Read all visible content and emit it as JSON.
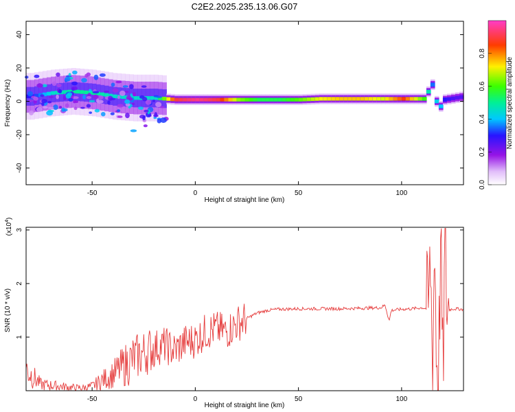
{
  "title": "C2E2.2025.235.13.06.G07",
  "chart_data": [
    {
      "type": "heatmap",
      "title": "C2E2.2025.235.13.06.G07",
      "xlabel": "Height of straight line (km)",
      "ylabel": "Frequency (Hz)",
      "xlim": [
        -82,
        130
      ],
      "ylim": [
        -50,
        48
      ],
      "x_ticks": [
        "-50",
        "0",
        "50",
        "100"
      ],
      "y_ticks": [
        "-40",
        "-20",
        "0",
        "20",
        "40"
      ],
      "colorbar": {
        "label": "Normalized spectral amplitude",
        "range": [
          0,
          1
        ],
        "ticks": [
          "0.0",
          "0.2",
          "0.4",
          "0.6",
          "0.8"
        ],
        "colormap": "rainbow (white→purple→blue→cyan→green→yellow→red→pink)"
      },
      "ridge": {
        "description": "frequency ridge of the signal vs height",
        "x": [
          -80,
          -70,
          -60,
          -50,
          -40,
          -30,
          -20,
          -10,
          0,
          10,
          20,
          30,
          40,
          50,
          60,
          70,
          80,
          90,
          100,
          110,
          114,
          117,
          120,
          125,
          130
        ],
        "frequency_hz": [
          3,
          5,
          6,
          5,
          3,
          2,
          2,
          1,
          1,
          1,
          1,
          1,
          1,
          1,
          1.5,
          1.5,
          1.5,
          1.5,
          1.5,
          1.5,
          10,
          -5,
          1,
          2,
          3
        ],
        "peak_amplitude": [
          0.3,
          0.45,
          0.5,
          0.5,
          0.45,
          0.45,
          0.45,
          0.9,
          0.95,
          0.9,
          0.65,
          0.55,
          0.55,
          0.62,
          0.72,
          0.75,
          0.75,
          0.7,
          0.85,
          0.6,
          0.35,
          0.45,
          0.3,
          0.25,
          0.25
        ]
      },
      "grid": false
    },
    {
      "type": "line",
      "xlabel": "Height of straight line (km)",
      "ylabel": "SNR (10 * v/v)",
      "scale_note": "(x10^4)",
      "xlim": [
        -82,
        130
      ],
      "ylim": [
        0,
        3.05
      ],
      "x_ticks": [
        "-50",
        "0",
        "50",
        "100"
      ],
      "y_ticks": [
        "1",
        "2",
        "3"
      ],
      "series": [
        {
          "color": "#e53a3a",
          "x": [
            -82,
            -75,
            -70,
            -65,
            -60,
            -55,
            -50,
            -45,
            -40,
            -35,
            -30,
            -25,
            -20,
            -15,
            -10,
            -5,
            0,
            5,
            10,
            15,
            20,
            25,
            30,
            35,
            40,
            50,
            60,
            70,
            80,
            90,
            92,
            94,
            95,
            100,
            105,
            110,
            113,
            114,
            115,
            116,
            117,
            118,
            119,
            120,
            121,
            122,
            125,
            130
          ],
          "y": [
            0.4,
            0.12,
            0.1,
            0.08,
            0.06,
            0.05,
            0.08,
            0.2,
            0.3,
            0.45,
            0.6,
            0.7,
            0.8,
            0.85,
            0.75,
            0.9,
            0.95,
            1.1,
            1.15,
            1.1,
            1.25,
            1.35,
            1.45,
            1.5,
            1.52,
            1.53,
            1.53,
            1.53,
            1.54,
            1.55,
            1.6,
            1.3,
            1.5,
            1.52,
            1.53,
            1.55,
            1.52,
            2.4,
            0.4,
            2.8,
            0.5,
            0.45,
            2.9,
            0.15,
            2.8,
            1.5,
            1.53,
            1.52
          ]
        }
      ],
      "grid": false
    }
  ]
}
